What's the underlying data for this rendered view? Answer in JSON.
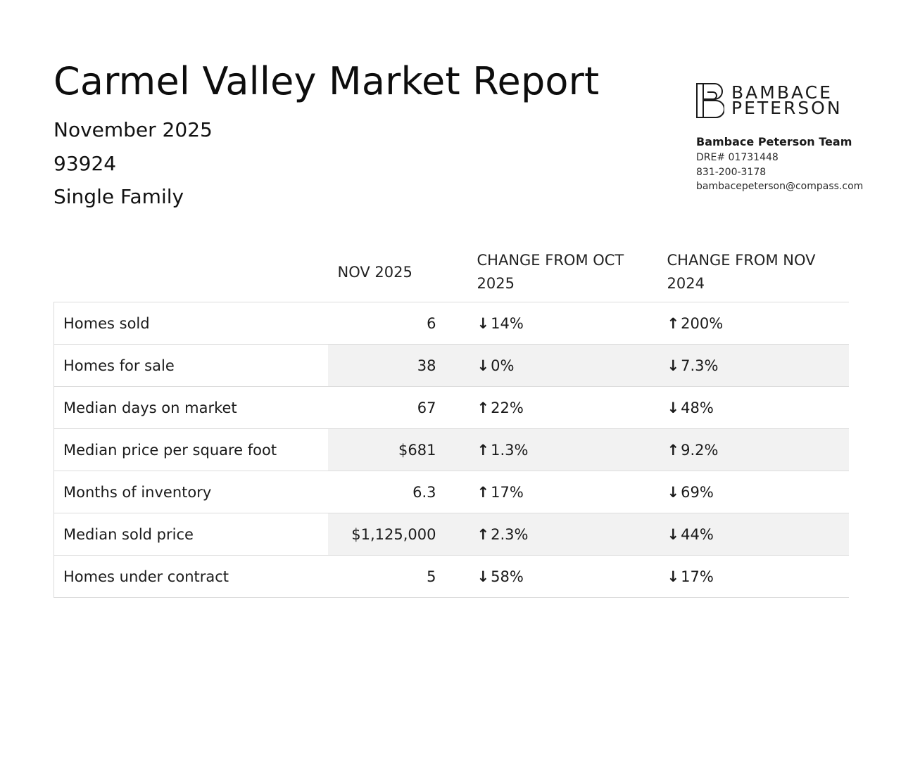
{
  "header": {
    "title": "Carmel Valley Market Report",
    "date": "November 2025",
    "zip": "93924",
    "property_type": "Single Family"
  },
  "brand": {
    "logo_line1": "BAMBACE",
    "logo_line2": "PETERSON",
    "team": "Bambace Peterson Team",
    "dre": "DRE# 01731448",
    "phone": "831-200-3178",
    "email": "bambacepeterson@compass.com"
  },
  "table": {
    "columns": [
      "",
      "NOV 2025",
      "CHANGE FROM OCT 2025",
      "CHANGE FROM NOV 2024"
    ],
    "rows": [
      {
        "label": "Homes sold",
        "value": "6",
        "mom": "14%",
        "mom_dir": "down",
        "yoy": "200%",
        "yoy_dir": "up"
      },
      {
        "label": "Homes for sale",
        "value": "38",
        "mom": "0%",
        "mom_dir": "down",
        "yoy": "7.3%",
        "yoy_dir": "down"
      },
      {
        "label": "Median days on market",
        "value": "67",
        "mom": "22%",
        "mom_dir": "up",
        "yoy": "48%",
        "yoy_dir": "down"
      },
      {
        "label": "Median price per square foot",
        "value": "$681",
        "mom": "1.3%",
        "mom_dir": "up",
        "yoy": "9.2%",
        "yoy_dir": "up"
      },
      {
        "label": "Months of inventory",
        "value": "6.3",
        "mom": "17%",
        "mom_dir": "up",
        "yoy": "69%",
        "yoy_dir": "down"
      },
      {
        "label": "Median sold price",
        "value": "$1,125,000",
        "mom": "2.3%",
        "mom_dir": "up",
        "yoy": "44%",
        "yoy_dir": "down"
      },
      {
        "label": "Homes under contract",
        "value": "5",
        "mom": "58%",
        "mom_dir": "down",
        "yoy": "17%",
        "yoy_dir": "down"
      }
    ]
  },
  "colors": {
    "up": "#3aa76d",
    "down": "#a3162b",
    "row_shade": "#f2f2f2"
  }
}
